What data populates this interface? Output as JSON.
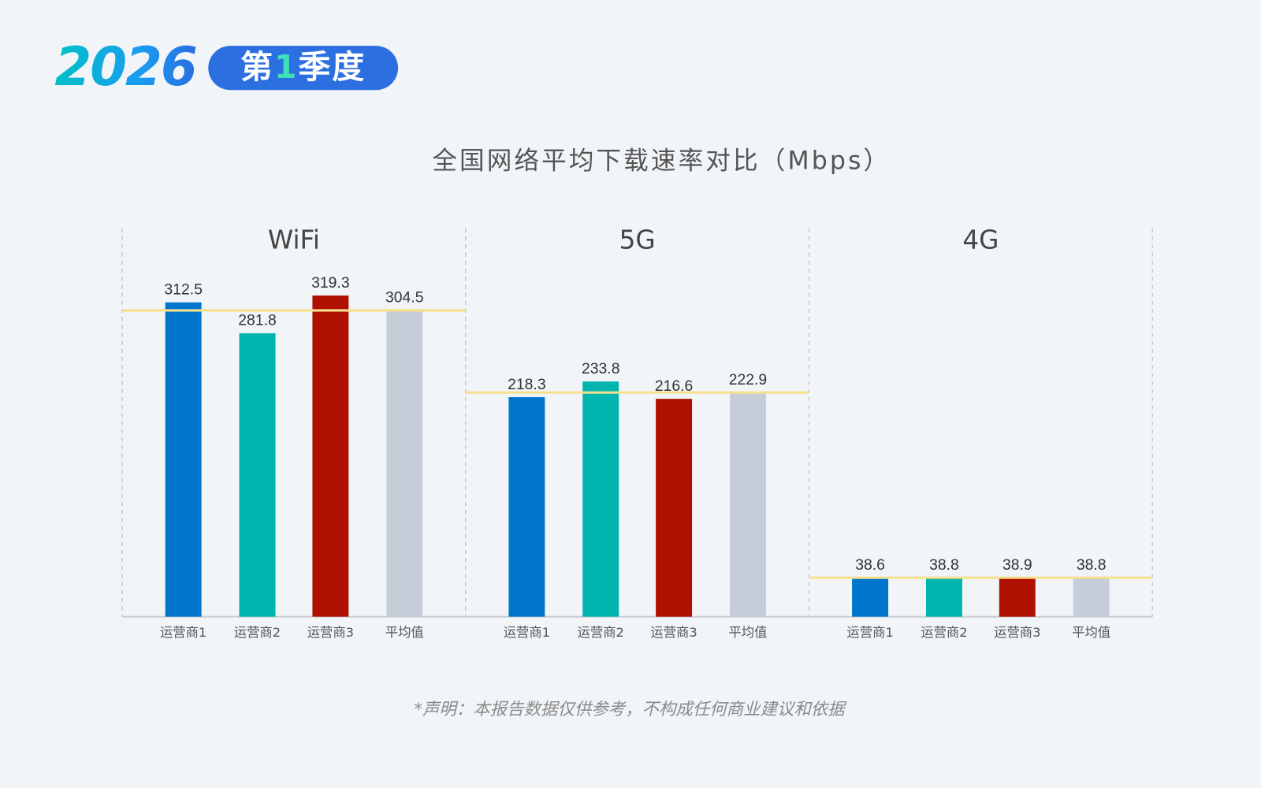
{
  "header": {
    "year": "2026",
    "quarter_prefix": "第",
    "quarter_num": "1",
    "quarter_suffix": "季度"
  },
  "colors": {
    "运营商1": "#0075cc",
    "运营商2": "#00b4b0",
    "运营商3": "#b01000",
    "平均值": "#c6cdd8",
    "average_line": "#f7df8c",
    "background": "#f1f5f8"
  },
  "chart_data": {
    "type": "bar",
    "title": "全国网络平均下载速率对比（Mbps）",
    "categories": [
      "运营商1",
      "运营商2",
      "运营商3",
      "平均值"
    ],
    "groups": [
      {
        "name": "WiFi",
        "values": [
          312.5,
          281.8,
          319.3,
          304.5
        ]
      },
      {
        "name": "5G",
        "values": [
          218.3,
          233.8,
          216.6,
          222.9
        ]
      },
      {
        "name": "4G",
        "values": [
          38.6,
          38.8,
          38.9,
          38.8
        ]
      }
    ],
    "reference_line": "平均值",
    "ylim": [
      0,
      320
    ],
    "grid": false,
    "legend": "none"
  },
  "footnote": "*声明：本报告数据仅供参考，不构成任何商业建议和依据"
}
